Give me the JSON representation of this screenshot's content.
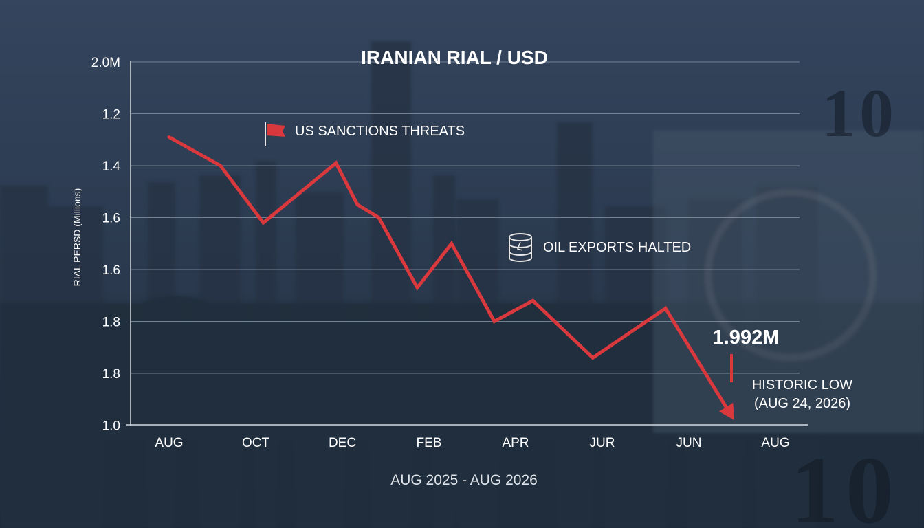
{
  "chart_data": {
    "type": "line",
    "title": "IRANIAN RIAL / USD",
    "subtitle": "AUG 2025 - AUG 2026",
    "ylabel": "RIAL PERSD (Millions)",
    "y_tick_labels": [
      "2.0M",
      "1.2",
      "1.4",
      "1.6",
      "1.6",
      "1.8",
      "1.8",
      "1.0"
    ],
    "x_tick_labels": [
      "AUG",
      "OCT",
      "DEC",
      "FEB",
      "APR",
      "JUR",
      "JUN",
      "AUG"
    ],
    "grid": true,
    "series": [
      {
        "color": "#d9383d",
        "points": [
          {
            "x": 0.0,
            "y": 1.29
          },
          {
            "x": 0.6,
            "y": 1.4
          },
          {
            "x": 1.1,
            "y": 1.62
          },
          {
            "x": 1.95,
            "y": 1.39
          },
          {
            "x": 2.2,
            "y": 1.55
          },
          {
            "x": 2.45,
            "y": 1.6
          },
          {
            "x": 2.9,
            "y": 1.87
          },
          {
            "x": 3.3,
            "y": 1.7
          },
          {
            "x": 3.8,
            "y": 2.0
          },
          {
            "x": 4.25,
            "y": 1.92
          },
          {
            "x": 4.95,
            "y": 2.14
          },
          {
            "x": 5.8,
            "y": 1.95
          },
          {
            "x": 6.6,
            "y": 2.38
          }
        ]
      }
    ],
    "annotations": [
      {
        "icon": "flag-icon",
        "text": "US SANCTIONS THREATS"
      },
      {
        "icon": "oil-barrel-icon",
        "text": "OIL EXPORTS HALTED"
      },
      {
        "text": "1.992M"
      },
      {
        "text": "HISTORIC LOW",
        "text2": "(AUG 24, 2026)"
      }
    ]
  },
  "colors": {
    "line": "#d9383d",
    "grid": "#8e9aab",
    "background": "#2a3a4e"
  }
}
